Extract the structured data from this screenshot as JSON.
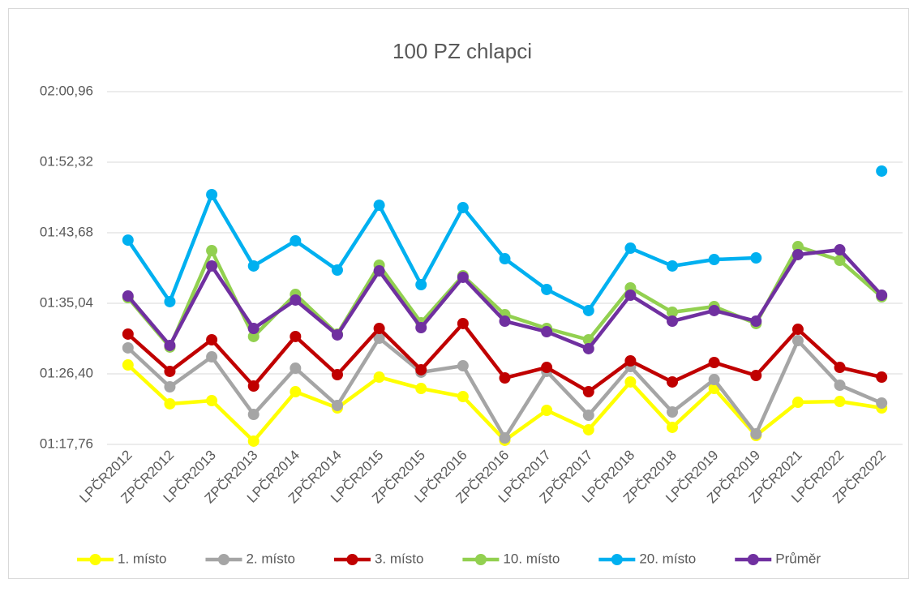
{
  "chart_data": {
    "type": "line",
    "title": "100 PZ chlapci",
    "categories": [
      "LPČR2012",
      "ZPČR2012",
      "LPČR2013",
      "ZPČR2013",
      "LPČR2014",
      "ZPČR2014",
      "LPČR2015",
      "ZPČR2015",
      "LPČR2016",
      "ZPČR2016",
      "LPČR2017",
      "ZPČR2017",
      "LPČR2018",
      "ZPČR2018",
      "LPČR2019",
      "ZPČR2019",
      "ZPČR2021",
      "LPČR2022",
      "ZPČR2022"
    ],
    "series": [
      {
        "name": "1. místo",
        "color": "#ffff00",
        "values": [
          87.49,
          82.73,
          83.12,
          78.16,
          84.21,
          82.23,
          86.0,
          84.61,
          83.62,
          78.26,
          81.93,
          79.55,
          85.41,
          79.85,
          84.61,
          78.85,
          82.92,
          83.02,
          82.23
        ]
      },
      {
        "name": "2. místo",
        "color": "#a5a5a5",
        "values": [
          89.58,
          84.81,
          88.48,
          81.43,
          87.09,
          82.53,
          90.77,
          86.6,
          87.39,
          78.55,
          86.7,
          81.33,
          87.29,
          81.73,
          85.7,
          79.05,
          90.47,
          85.01,
          82.82
        ]
      },
      {
        "name": "3. místo",
        "color": "#c00000",
        "values": [
          91.27,
          86.7,
          90.57,
          84.91,
          90.97,
          86.3,
          91.96,
          86.9,
          92.56,
          85.9,
          87.19,
          84.21,
          87.99,
          85.41,
          87.79,
          86.2,
          91.86,
          87.19,
          86.0
        ]
      },
      {
        "name": "10. místo",
        "color": "#92d050",
        "values": [
          95.73,
          89.68,
          101.49,
          90.97,
          96.13,
          91.27,
          99.71,
          92.66,
          98.42,
          93.65,
          91.96,
          90.57,
          96.93,
          93.95,
          94.64,
          92.56,
          101.99,
          100.3,
          95.83
        ]
      },
      {
        "name": "20. místo",
        "color": "#00b0f0",
        "values": [
          102.78,
          95.24,
          108.35,
          99.61,
          102.69,
          99.11,
          107.05,
          97.32,
          106.76,
          100.5,
          96.73,
          94.15,
          101.79,
          99.61,
          100.4,
          100.6,
          null,
          null,
          111.23
        ]
      },
      {
        "name": "Průměr",
        "color": "#7030a0",
        "values": [
          95.93,
          89.88,
          99.61,
          91.96,
          95.44,
          91.17,
          99.01,
          92.06,
          98.22,
          92.85,
          91.56,
          89.48,
          96.03,
          92.85,
          94.15,
          92.85,
          101.0,
          101.59,
          96.03
        ]
      }
    ],
    "ylim": [
      77.76,
      120.96
    ],
    "yticks": [
      {
        "value": 77.76,
        "label": "01:17,76"
      },
      {
        "value": 86.4,
        "label": "01:26,40"
      },
      {
        "value": 95.04,
        "label": "01:35,04"
      },
      {
        "value": 103.68,
        "label": "01:43,68"
      },
      {
        "value": 112.32,
        "label": "01:52,32"
      },
      {
        "value": 120.96,
        "label": "02:00,96"
      }
    ],
    "grid": true,
    "legend": "bottom"
  }
}
